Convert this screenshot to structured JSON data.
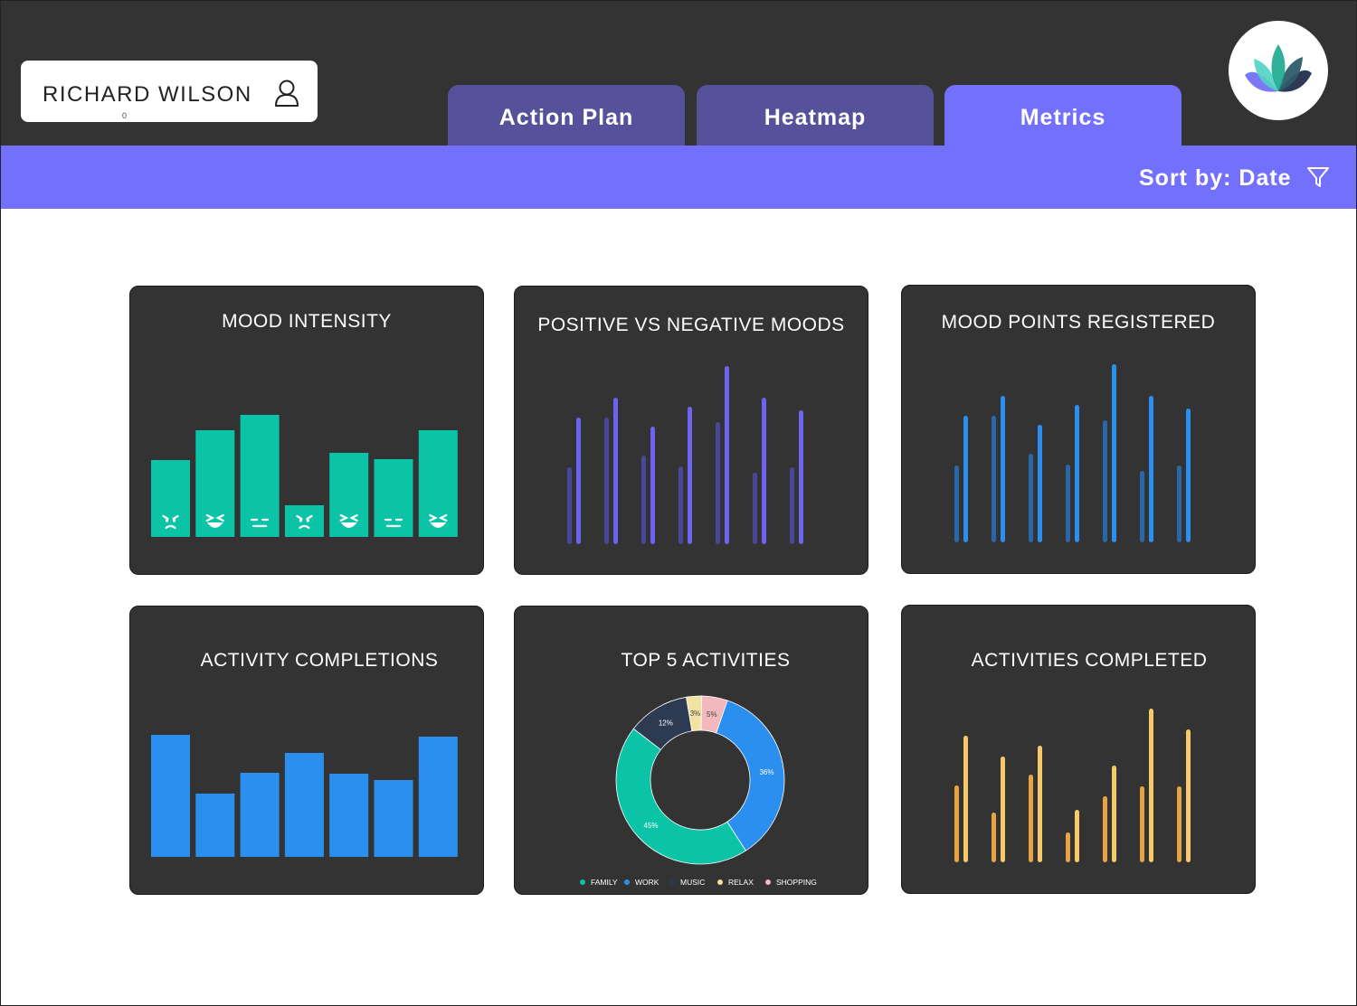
{
  "user": {
    "name": "RICHARD WILSON",
    "sub": "0"
  },
  "tabs": [
    {
      "label": "Action Plan",
      "active": false
    },
    {
      "label": "Heatmap",
      "active": false
    },
    {
      "label": "Metrics",
      "active": true
    }
  ],
  "sort": {
    "label": "Sort by: Date"
  },
  "colors": {
    "accent": "#7370fe",
    "tab": "#55519b",
    "dark": "#333333",
    "teal": "#0bc4a7",
    "blue": "#2b8ff0",
    "purple": "#6c63f2",
    "orange": "#f0ae4c"
  },
  "cards": {
    "mood_intensity": {
      "title": "MOOD INTENSITY"
    },
    "pos_neg": {
      "title": "POSITIVE VS NEGATIVE MOODS"
    },
    "mood_points": {
      "title": "MOOD POINTS REGISTERED"
    },
    "activity_completions": {
      "title": "ACTIVITY COMPLETIONS"
    },
    "top5": {
      "title": "TOP 5 ACTIVITIES"
    },
    "activities_completed": {
      "title": "ACTIVITIES COMPLETED"
    }
  },
  "chart_data": [
    {
      "id": "mood_intensity",
      "type": "bar",
      "values": [
        85,
        118,
        135,
        35,
        93,
        86,
        118
      ],
      "faces": [
        "angry-icon",
        "laugh-icon",
        "neutral-icon",
        "angry-icon",
        "laugh-icon",
        "neutral-icon",
        "laugh-icon"
      ],
      "color": "#0bc4a7"
    },
    {
      "id": "pos_neg",
      "type": "bar",
      "series": [
        {
          "values": [
            85,
            140,
            98,
            86,
            135,
            79,
            85
          ]
        },
        {
          "values": [
            140,
            162,
            130,
            152,
            197,
            162,
            148
          ]
        }
      ],
      "colors": [
        "#4a4699",
        "#6c63f2"
      ]
    },
    {
      "id": "mood_points",
      "type": "bar",
      "series": [
        {
          "values": [
            85,
            140,
            98,
            86,
            135,
            79,
            85
          ]
        },
        {
          "values": [
            140,
            162,
            130,
            152,
            197,
            162,
            148
          ]
        }
      ],
      "colors": [
        "#2a67a8",
        "#2b8ff0"
      ]
    },
    {
      "id": "activity_completions",
      "type": "bar",
      "values": [
        135,
        70,
        93,
        115,
        92,
        85,
        133
      ],
      "color": "#2b8ff0"
    },
    {
      "id": "top5",
      "type": "pie",
      "donut": true,
      "categories": [
        "FAMILY",
        "WORK",
        "MUSIC",
        "RELAX",
        "SHOPPING"
      ],
      "values": [
        45,
        36,
        12,
        3,
        5
      ],
      "labels": [
        "45%",
        "36%",
        "12%",
        "3%",
        "5%"
      ],
      "colors": [
        "#0bc4a7",
        "#2b8ff0",
        "#2c3a52",
        "#f1e3a0",
        "#f2b8bd"
      ]
    },
    {
      "id": "activities_completed",
      "type": "bar",
      "series": [
        {
          "values": [
            85,
            55,
            97,
            33,
            73,
            84,
            84
          ]
        },
        {
          "values": [
            140,
            117,
            129,
            58,
            107,
            170,
            147
          ]
        }
      ],
      "colors": [
        "#e8a444",
        "#f6c96a"
      ]
    }
  ]
}
